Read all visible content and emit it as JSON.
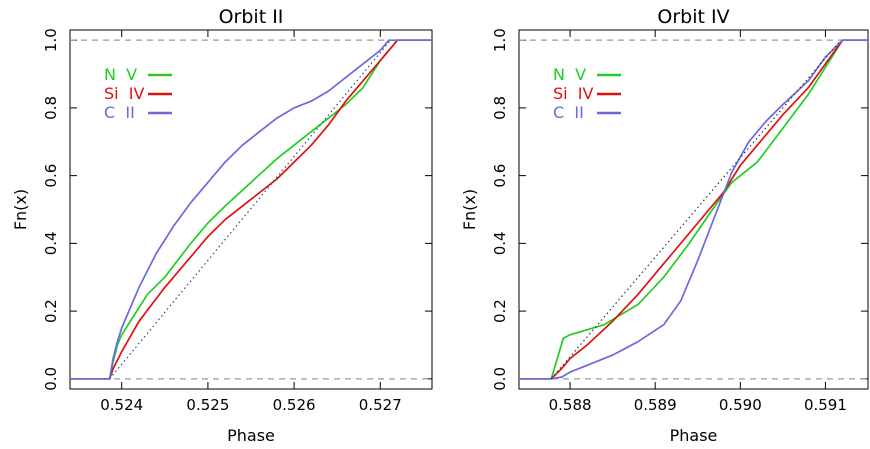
{
  "chart_data": [
    {
      "type": "line",
      "title": "Orbit II",
      "xlabel": "Phase",
      "ylabel": "Fn(x)",
      "xlim": [
        0.5234,
        0.5276
      ],
      "ylim": [
        -0.03,
        1.03
      ],
      "xticks": [
        0.524,
        0.525,
        0.526,
        0.527
      ],
      "xtick_labels": [
        "0.524",
        "0.525",
        "0.526",
        "0.527"
      ],
      "yticks": [
        0.0,
        0.2,
        0.4,
        0.6,
        0.8,
        1.0
      ],
      "ytick_labels": [
        "0.0",
        "0.2",
        "0.4",
        "0.6",
        "0.8",
        "1.0"
      ],
      "hlines": [
        0.0,
        1.0
      ],
      "legend_position": "top-left",
      "legend": [
        {
          "name": "N  V",
          "color": "#22cc22"
        },
        {
          "name": "Si  IV",
          "color": "#e01010"
        },
        {
          "name": "C  II",
          "color": "#6a6add"
        }
      ],
      "series": [
        {
          "color": "#22cc22",
          "x": [
            0.5234,
            0.52386,
            0.5239,
            0.52395,
            0.524,
            0.52415,
            0.5243,
            0.5245,
            0.5248,
            0.525,
            0.5252,
            0.5255,
            0.5258,
            0.526,
            0.5262,
            0.5264,
            0.5266,
            0.5268,
            0.527,
            0.5272,
            0.5276
          ],
          "y": [
            0.0,
            0.0,
            0.05,
            0.1,
            0.13,
            0.19,
            0.25,
            0.3,
            0.4,
            0.46,
            0.51,
            0.58,
            0.65,
            0.69,
            0.73,
            0.77,
            0.81,
            0.86,
            0.94,
            1.0,
            1.0
          ]
        },
        {
          "color": "#e01010",
          "x": [
            0.5234,
            0.52386,
            0.5239,
            0.524,
            0.5242,
            0.5245,
            0.5248,
            0.525,
            0.5252,
            0.5255,
            0.5258,
            0.526,
            0.5262,
            0.5264,
            0.5266,
            0.5268,
            0.527,
            0.5272,
            0.5276
          ],
          "y": [
            0.0,
            0.0,
            0.03,
            0.08,
            0.17,
            0.27,
            0.36,
            0.42,
            0.47,
            0.53,
            0.59,
            0.64,
            0.69,
            0.75,
            0.82,
            0.88,
            0.94,
            1.0,
            1.0
          ]
        },
        {
          "color": "#6a6add",
          "x": [
            0.5234,
            0.52386,
            0.5239,
            0.52395,
            0.524,
            0.5242,
            0.5244,
            0.5246,
            0.5248,
            0.525,
            0.5252,
            0.5254,
            0.5256,
            0.5258,
            0.526,
            0.5262,
            0.5264,
            0.5266,
            0.5268,
            0.527,
            0.5271,
            0.5276
          ],
          "y": [
            0.0,
            0.0,
            0.06,
            0.11,
            0.15,
            0.27,
            0.37,
            0.45,
            0.52,
            0.58,
            0.64,
            0.69,
            0.73,
            0.77,
            0.8,
            0.82,
            0.85,
            0.89,
            0.93,
            0.97,
            1.0,
            1.0
          ]
        },
        {
          "color": "#2a4a7a",
          "dashed": true,
          "x": [
            0.52386,
            0.52712
          ],
          "y": [
            0.0,
            1.0
          ]
        }
      ]
    },
    {
      "type": "line",
      "title": "Orbit IV",
      "xlabel": "Phase",
      "ylabel": "Fn(x)",
      "xlim": [
        0.5874,
        0.5915
      ],
      "ylim": [
        -0.03,
        1.03
      ],
      "xticks": [
        0.588,
        0.589,
        0.59,
        0.591
      ],
      "xtick_labels": [
        "0.588",
        "0.589",
        "0.590",
        "0.591"
      ],
      "yticks": [
        0.0,
        0.2,
        0.4,
        0.6,
        0.8,
        1.0
      ],
      "ytick_labels": [
        "0.0",
        "0.2",
        "0.4",
        "0.6",
        "0.8",
        "1.0"
      ],
      "hlines": [
        0.0,
        1.0
      ],
      "legend_position": "top-left",
      "legend": [
        {
          "name": "N  V",
          "color": "#22cc22"
        },
        {
          "name": "Si  IV",
          "color": "#e01010"
        },
        {
          "name": "C  II",
          "color": "#6a6add"
        }
      ],
      "series": [
        {
          "color": "#22cc22",
          "x": [
            0.5874,
            0.58778,
            0.58785,
            0.58792,
            0.588,
            0.5884,
            0.5888,
            0.5891,
            0.5894,
            0.5897,
            0.5899,
            0.5902,
            0.5905,
            0.5908,
            0.591,
            0.5912,
            0.5915
          ],
          "y": [
            0.0,
            0.0,
            0.06,
            0.12,
            0.13,
            0.16,
            0.22,
            0.3,
            0.4,
            0.51,
            0.58,
            0.64,
            0.74,
            0.84,
            0.92,
            1.0,
            1.0
          ]
        },
        {
          "color": "#e01010",
          "x": [
            0.5874,
            0.58778,
            0.5879,
            0.588,
            0.5882,
            0.5885,
            0.5888,
            0.589,
            0.5892,
            0.5895,
            0.5898,
            0.59,
            0.5902,
            0.5905,
            0.5908,
            0.591,
            0.5912,
            0.5915
          ],
          "y": [
            0.0,
            0.0,
            0.03,
            0.06,
            0.1,
            0.17,
            0.25,
            0.31,
            0.37,
            0.46,
            0.55,
            0.63,
            0.69,
            0.78,
            0.86,
            0.93,
            1.0,
            1.0
          ]
        },
        {
          "color": "#6a6add",
          "x": [
            0.5874,
            0.58778,
            0.5879,
            0.588,
            0.5882,
            0.5885,
            0.5888,
            0.5891,
            0.5893,
            0.5895,
            0.5897,
            0.5899,
            0.5901,
            0.5903,
            0.5905,
            0.5908,
            0.591,
            0.5912,
            0.5915
          ],
          "y": [
            0.0,
            0.0,
            0.005,
            0.02,
            0.04,
            0.07,
            0.11,
            0.16,
            0.23,
            0.35,
            0.48,
            0.61,
            0.7,
            0.76,
            0.81,
            0.88,
            0.95,
            1.0,
            1.0
          ]
        },
        {
          "color": "#333333",
          "dashed": true,
          "x": [
            0.58778,
            0.59118
          ],
          "y": [
            0.0,
            1.0
          ]
        }
      ]
    }
  ]
}
